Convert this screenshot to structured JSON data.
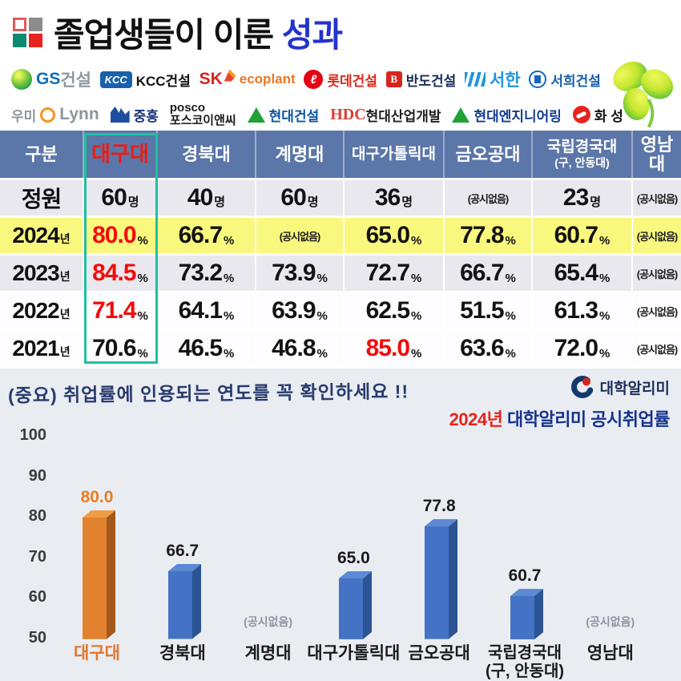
{
  "header": {
    "title_main": "졸업생들이 이룬 ",
    "title_accent": "성과"
  },
  "colors": {
    "title_accent": "#2433cc",
    "table_header_bg": "#5b76a8",
    "highlight_row_bg": "#f9f87e",
    "highlight_box": "#1fc0a0",
    "value_red": "#f40b0b",
    "bar_orange": "#e2812e",
    "bar_blue": "#4472c4"
  },
  "sponsors": {
    "rows": [
      [
        {
          "id": "gs-enc",
          "icon": "gs-icon",
          "parts": [
            {
              "t": "GS",
              "c": "#0a6ebd",
              "b": 1,
              "big": 1
            },
            {
              "t": "건설",
              "c": "#9099a3",
              "b": 0,
              "big": 1
            }
          ]
        },
        {
          "id": "kcc-enc",
          "icon": "kcc-icon",
          "icon_text": "KCC",
          "parts": [
            {
              "t": "KCC건설",
              "c": "#111111",
              "b": 1
            }
          ]
        },
        {
          "id": "sk-ecoplant",
          "parts": [
            {
              "t": "SK",
              "c": "#d6251f",
              "b": 1,
              "big": 1
            },
            {
              "icon": "sk-butterfly-icon"
            },
            {
              "t": "ecoplant",
              "c": "#ee7624",
              "b": 1
            }
          ]
        },
        {
          "id": "lotte-enc",
          "icon": "lotte-icon",
          "icon_text": "ℓ",
          "parts": [
            {
              "t": "롯데건설",
              "c": "#da291c",
              "b": 1
            }
          ]
        },
        {
          "id": "bando-enc",
          "icon": "bando-icon",
          "icon_text": "B",
          "parts": [
            {
              "t": "반도건설",
              "c": "#1b2e5a",
              "b": 1
            }
          ]
        },
        {
          "id": "seohan",
          "icon": "seohan-icon",
          "parts": [
            {
              "t": "서한",
              "c": "#2196dd",
              "b": 1,
              "big": 1
            }
          ]
        },
        {
          "id": "seohee-enc",
          "icon": "seohee-icon",
          "parts": [
            {
              "t": "서희건설",
              "c": "#1760a8",
              "b": 1
            }
          ]
        }
      ],
      [
        {
          "id": "umi-lynn",
          "parts": [
            {
              "t": "우미",
              "c": "#8f959b",
              "b": 1
            },
            {
              "icon": "umi-icon"
            },
            {
              "t": "Lynn",
              "c": "#8f959b",
              "b": 1,
              "big": 1
            }
          ]
        },
        {
          "id": "jungheung",
          "icon": "jh-icon",
          "parts": [
            {
              "t": "중흥",
              "c": "#17307a",
              "b": 1
            }
          ]
        },
        {
          "id": "posco-enc",
          "stack": [
            "posco",
            "포스코이앤씨"
          ],
          "c": "#1c1c1c"
        },
        {
          "id": "hyundai-enc",
          "icon": "tri-icon",
          "parts": [
            {
              "t": "현대건설",
              "c": "#0b57a4",
              "b": 1
            }
          ]
        },
        {
          "id": "hdc",
          "parts": [
            {
              "t": "HDC",
              "c": "#e03c31",
              "b": 1,
              "serif": 1
            },
            {
              "t": " 현대산업개발",
              "c": "#222222",
              "b": 0
            }
          ]
        },
        {
          "id": "hyundai-engineering",
          "icon": "tri-icon",
          "parts": [
            {
              "t": "현대엔지니어링",
              "c": "#123c91",
              "b": 1
            }
          ]
        },
        {
          "id": "hwaseong",
          "icon": "hs-icon",
          "parts": [
            {
              "t": "화 성",
              "c": "#111111",
              "b": 1
            }
          ]
        }
      ]
    ]
  },
  "table": {
    "na_text": "(공시없음)",
    "columns": [
      {
        "label": "구분"
      },
      {
        "label": "대구대",
        "red": true
      },
      {
        "label": "경북대"
      },
      {
        "label": "계명대"
      },
      {
        "label": "대구가톨릭대",
        "small": true
      },
      {
        "label": "금오공대"
      },
      {
        "label": "국립경국대",
        "sub": "(구, 안동대)",
        "small": true
      },
      {
        "label": "영남대"
      }
    ],
    "rows": [
      {
        "y": "정원",
        "ys": "",
        "bg": "gray",
        "cells": [
          {
            "v": "60",
            "u": "명"
          },
          {
            "v": "40",
            "u": "명"
          },
          {
            "v": "60",
            "u": "명"
          },
          {
            "v": "36",
            "u": "명"
          },
          {
            "na": true
          },
          {
            "v": "23",
            "u": "명"
          },
          {
            "na": true
          }
        ]
      },
      {
        "y": "2024",
        "ys": "년",
        "bg": "yellow",
        "cells": [
          {
            "v": "80.0",
            "u": "%",
            "red": true
          },
          {
            "v": "66.7",
            "u": "%"
          },
          {
            "na": true
          },
          {
            "v": "65.0",
            "u": "%"
          },
          {
            "v": "77.8",
            "u": "%"
          },
          {
            "v": "60.7",
            "u": "%"
          },
          {
            "na": true
          }
        ]
      },
      {
        "y": "2023",
        "ys": "년",
        "bg": "gray",
        "cells": [
          {
            "v": "84.5",
            "u": "%",
            "red": true
          },
          {
            "v": "73.2",
            "u": "%"
          },
          {
            "v": "73.9",
            "u": "%"
          },
          {
            "v": "72.7",
            "u": "%"
          },
          {
            "v": "66.7",
            "u": "%"
          },
          {
            "v": "65.4",
            "u": "%"
          },
          {
            "na": true
          }
        ]
      },
      {
        "y": "2022",
        "ys": "년",
        "bg": "white",
        "cells": [
          {
            "v": "71.4",
            "u": "%",
            "red": true
          },
          {
            "v": "64.1",
            "u": "%"
          },
          {
            "v": "63.9",
            "u": "%"
          },
          {
            "v": "62.5",
            "u": "%"
          },
          {
            "v": "51.5",
            "u": "%"
          },
          {
            "v": "61.3",
            "u": "%"
          },
          {
            "na": true
          }
        ]
      },
      {
        "y": "2021",
        "ys": "년",
        "bg": "white",
        "cells": [
          {
            "v": "70.6",
            "u": "%"
          },
          {
            "v": "46.5",
            "u": "%"
          },
          {
            "v": "46.8",
            "u": "%"
          },
          {
            "v": "85.0",
            "u": "%",
            "red": true
          },
          {
            "v": "63.6",
            "u": "%"
          },
          {
            "v": "72.0",
            "u": "%"
          },
          {
            "na": true
          }
        ]
      }
    ]
  },
  "note": {
    "text": "(중요) 취업률에 인용되는 연도를 꼭 확인하세요 !!"
  },
  "alimi": {
    "logo_text": "대학알리미",
    "caption_year": "2024년",
    "caption_rest": " 대학알리미 공시취업률"
  },
  "chart_data": {
    "type": "bar",
    "title": "2024년 대학알리미 공시취업률",
    "categories": [
      "대구대",
      "경북대",
      "계명대",
      "대구가톨릭대",
      "금오공대",
      [
        "국립경국대",
        "(구, 안동대)"
      ],
      "영남대"
    ],
    "values": [
      80.0,
      66.7,
      null,
      65.0,
      77.8,
      60.7,
      null
    ],
    "labels": [
      "80.0",
      "66.7",
      "(공시없음)",
      "65.0",
      "77.8",
      "60.7",
      "(공시없음)"
    ],
    "na_label": "(공시없음)",
    "ylim": [
      50,
      100
    ],
    "yticks": [
      100,
      90,
      80,
      70,
      60,
      50
    ],
    "xlabel": "",
    "ylabel": "",
    "grid": false,
    "legend": false,
    "highlight_index": 0,
    "bar_colors": {
      "highlight": {
        "front": "#e2812e",
        "side": "#a4581b",
        "top": "#ef9c47",
        "label": "#e87d22",
        "cat": "#e2762a"
      },
      "normal": {
        "front": "#4472c4",
        "side": "#2c5494",
        "top": "#5d89d5",
        "label": "#1a1a1a",
        "cat": "#1a1a1a"
      }
    }
  }
}
